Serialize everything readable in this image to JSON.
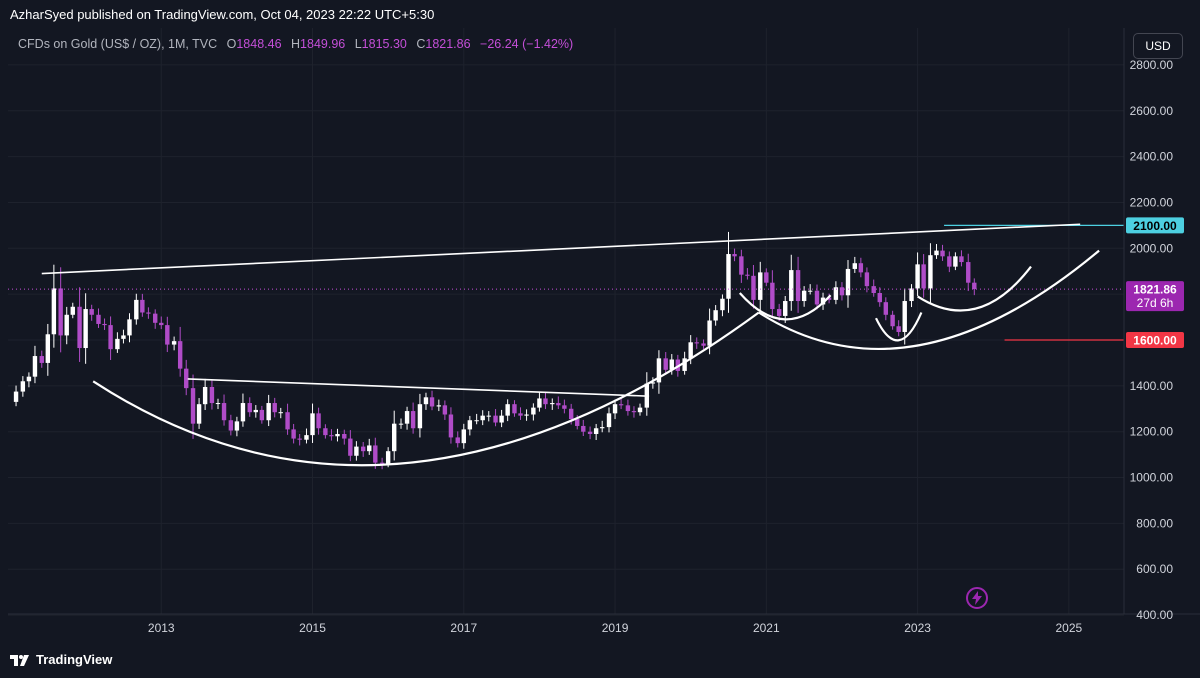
{
  "header": {
    "publisher_text": "AzharSyed published on TradingView.com, Oct 04, 2023 22:22 UTC+5:30"
  },
  "legend": {
    "symbol": "CFDs on Gold (US$ / OZ), 1M, TVC",
    "open_label": "O",
    "open": "1848.46",
    "high_label": "H",
    "high": "1849.96",
    "low_label": "L",
    "low": "1815.30",
    "close_label": "C",
    "close": "1821.86",
    "change": "−26.24 (−1.42%)"
  },
  "currency_button": "USD",
  "footer": {
    "brand": "TradingView"
  },
  "chart_data": {
    "type": "candlestick",
    "symbol": "CFDs on Gold (US$ / OZ)",
    "interval": "1M",
    "x_ticks": [
      "2013",
      "2015",
      "2017",
      "2019",
      "2021",
      "2023",
      "2025"
    ],
    "y_ticks": [
      "400.00",
      "600.00",
      "800.00",
      "1000.00",
      "1200.00",
      "1400.00",
      "1600.00",
      "1800.00",
      "2000.00",
      "2200.00",
      "2400.00",
      "2600.00",
      "2800.00"
    ],
    "ylim": [
      300,
      2900
    ],
    "xlim": [
      2011.0,
      2025.65
    ],
    "grid": true,
    "colors": {
      "up": "#ffffff",
      "down": "#b04cc8",
      "background": "#131722",
      "price_line": "#c44fd8",
      "resistance": "#4dd0e1",
      "support": "#f23645",
      "drawing": "#ffffff"
    },
    "price_labels": [
      {
        "text": "2100.00",
        "value": 2100,
        "color": "#4dd0e1"
      },
      {
        "text": "1821.86",
        "value": 1821.86,
        "color": "#9c27b0",
        "countdown": "27d 6h"
      },
      {
        "text": "1600.00",
        "value": 1600,
        "color": "#f23645"
      }
    ],
    "monthly_close": [
      [
        2011.0,
        1330
      ],
      [
        2011.08,
        1375
      ],
      [
        2011.17,
        1420
      ],
      [
        2011.25,
        1440
      ],
      [
        2011.33,
        1530
      ],
      [
        2011.42,
        1500
      ],
      [
        2011.5,
        1625
      ],
      [
        2011.58,
        1825
      ],
      [
        2011.67,
        1620
      ],
      [
        2011.75,
        1710
      ],
      [
        2011.83,
        1745
      ],
      [
        2011.92,
        1565
      ],
      [
        2012.0,
        1735
      ],
      [
        2012.08,
        1710
      ],
      [
        2012.17,
        1670
      ],
      [
        2012.25,
        1665
      ],
      [
        2012.33,
        1560
      ],
      [
        2012.42,
        1605
      ],
      [
        2012.5,
        1620
      ],
      [
        2012.58,
        1690
      ],
      [
        2012.67,
        1775
      ],
      [
        2012.75,
        1720
      ],
      [
        2012.83,
        1715
      ],
      [
        2012.92,
        1675
      ],
      [
        2013.0,
        1665
      ],
      [
        2013.08,
        1580
      ],
      [
        2013.17,
        1595
      ],
      [
        2013.25,
        1475
      ],
      [
        2013.33,
        1390
      ],
      [
        2013.42,
        1235
      ],
      [
        2013.5,
        1320
      ],
      [
        2013.58,
        1395
      ],
      [
        2013.67,
        1325
      ],
      [
        2013.75,
        1325
      ],
      [
        2013.83,
        1250
      ],
      [
        2013.92,
        1205
      ],
      [
        2014.0,
        1245
      ],
      [
        2014.08,
        1325
      ],
      [
        2014.17,
        1285
      ],
      [
        2014.25,
        1295
      ],
      [
        2014.33,
        1250
      ],
      [
        2014.42,
        1325
      ],
      [
        2014.5,
        1285
      ],
      [
        2014.58,
        1285
      ],
      [
        2014.67,
        1210
      ],
      [
        2014.75,
        1170
      ],
      [
        2014.83,
        1165
      ],
      [
        2014.92,
        1185
      ],
      [
        2015.0,
        1280
      ],
      [
        2015.08,
        1215
      ],
      [
        2015.17,
        1185
      ],
      [
        2015.25,
        1180
      ],
      [
        2015.33,
        1190
      ],
      [
        2015.42,
        1170
      ],
      [
        2015.5,
        1095
      ],
      [
        2015.58,
        1135
      ],
      [
        2015.67,
        1115
      ],
      [
        2015.75,
        1140
      ],
      [
        2015.83,
        1065
      ],
      [
        2015.92,
        1060
      ],
      [
        2016.0,
        1115
      ],
      [
        2016.08,
        1235
      ],
      [
        2016.17,
        1235
      ],
      [
        2016.25,
        1290
      ],
      [
        2016.33,
        1215
      ],
      [
        2016.42,
        1320
      ],
      [
        2016.5,
        1350
      ],
      [
        2016.58,
        1310
      ],
      [
        2016.67,
        1315
      ],
      [
        2016.75,
        1275
      ],
      [
        2016.83,
        1175
      ],
      [
        2016.92,
        1150
      ],
      [
        2017.0,
        1210
      ],
      [
        2017.08,
        1250
      ],
      [
        2017.17,
        1250
      ],
      [
        2017.25,
        1270
      ],
      [
        2017.33,
        1270
      ],
      [
        2017.42,
        1240
      ],
      [
        2017.5,
        1270
      ],
      [
        2017.58,
        1320
      ],
      [
        2017.67,
        1280
      ],
      [
        2017.75,
        1270
      ],
      [
        2017.83,
        1275
      ],
      [
        2017.92,
        1305
      ],
      [
        2018.0,
        1345
      ],
      [
        2018.08,
        1320
      ],
      [
        2018.17,
        1325
      ],
      [
        2018.25,
        1315
      ],
      [
        2018.33,
        1300
      ],
      [
        2018.42,
        1255
      ],
      [
        2018.5,
        1225
      ],
      [
        2018.58,
        1200
      ],
      [
        2018.67,
        1190
      ],
      [
        2018.75,
        1215
      ],
      [
        2018.83,
        1220
      ],
      [
        2018.92,
        1280
      ],
      [
        2019.0,
        1320
      ],
      [
        2019.08,
        1315
      ],
      [
        2019.17,
        1290
      ],
      [
        2019.25,
        1285
      ],
      [
        2019.33,
        1305
      ],
      [
        2019.42,
        1410
      ],
      [
        2019.5,
        1415
      ],
      [
        2019.58,
        1520
      ],
      [
        2019.67,
        1470
      ],
      [
        2019.75,
        1515
      ],
      [
        2019.83,
        1465
      ],
      [
        2019.92,
        1520
      ],
      [
        2020.0,
        1590
      ],
      [
        2020.08,
        1585
      ],
      [
        2020.17,
        1575
      ],
      [
        2020.25,
        1685
      ],
      [
        2020.33,
        1730
      ],
      [
        2020.42,
        1780
      ],
      [
        2020.5,
        1975
      ],
      [
        2020.58,
        1965
      ],
      [
        2020.67,
        1885
      ],
      [
        2020.75,
        1880
      ],
      [
        2020.83,
        1775
      ],
      [
        2020.92,
        1895
      ],
      [
        2021.0,
        1850
      ],
      [
        2021.08,
        1735
      ],
      [
        2021.17,
        1705
      ],
      [
        2021.25,
        1770
      ],
      [
        2021.33,
        1905
      ],
      [
        2021.42,
        1770
      ],
      [
        2021.5,
        1815
      ],
      [
        2021.58,
        1815
      ],
      [
        2021.67,
        1755
      ],
      [
        2021.75,
        1785
      ],
      [
        2021.83,
        1775
      ],
      [
        2021.92,
        1830
      ],
      [
        2022.0,
        1795
      ],
      [
        2022.08,
        1910
      ],
      [
        2022.17,
        1935
      ],
      [
        2022.25,
        1895
      ],
      [
        2022.33,
        1835
      ],
      [
        2022.42,
        1805
      ],
      [
        2022.5,
        1765
      ],
      [
        2022.58,
        1710
      ],
      [
        2022.67,
        1660
      ],
      [
        2022.75,
        1635
      ],
      [
        2022.83,
        1770
      ],
      [
        2022.92,
        1825
      ],
      [
        2023.0,
        1930
      ],
      [
        2023.08,
        1825
      ],
      [
        2023.17,
        1970
      ],
      [
        2023.25,
        1990
      ],
      [
        2023.33,
        1965
      ],
      [
        2023.42,
        1920
      ],
      [
        2023.5,
        1965
      ],
      [
        2023.58,
        1940
      ],
      [
        2023.67,
        1850
      ],
      [
        2023.75,
        1822
      ]
    ]
  }
}
